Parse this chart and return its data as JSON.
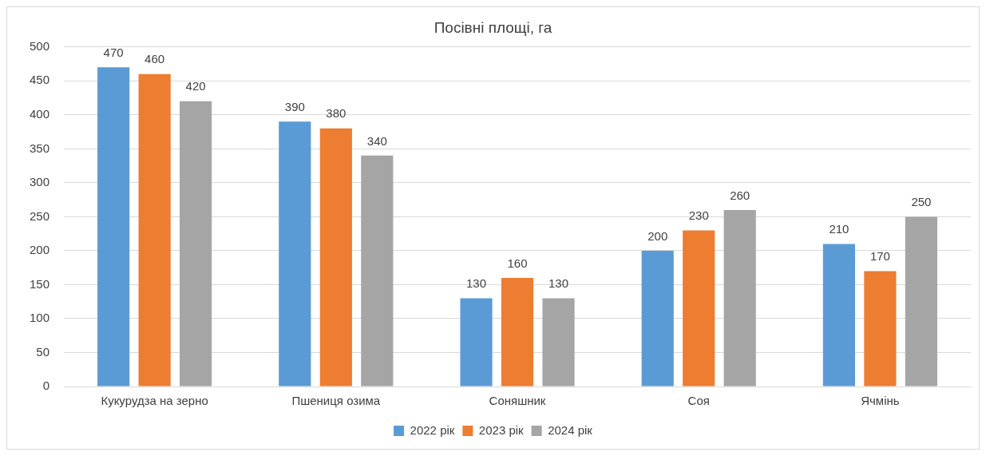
{
  "chart_data": {
    "type": "bar",
    "title": "Посівні площі, га",
    "categories": [
      "Кукурудза на зерно",
      "Пшениця озима",
      "Соняшник",
      "Соя",
      "Ячмінь"
    ],
    "series": [
      {
        "name": "2022 рік",
        "color": "#5b9bd5",
        "values": [
          470,
          390,
          130,
          200,
          210
        ]
      },
      {
        "name": "2023 рік",
        "color": "#ed7d31",
        "values": [
          460,
          380,
          160,
          230,
          170
        ]
      },
      {
        "name": "2024 рік",
        "color": "#a5a5a5",
        "values": [
          420,
          340,
          130,
          260,
          250
        ]
      }
    ],
    "ylim": [
      0,
      500
    ],
    "yticks": [
      0,
      50,
      100,
      150,
      200,
      250,
      300,
      350,
      400,
      450,
      500
    ],
    "grid": "y",
    "legend": "bottom",
    "data_labels": true
  }
}
